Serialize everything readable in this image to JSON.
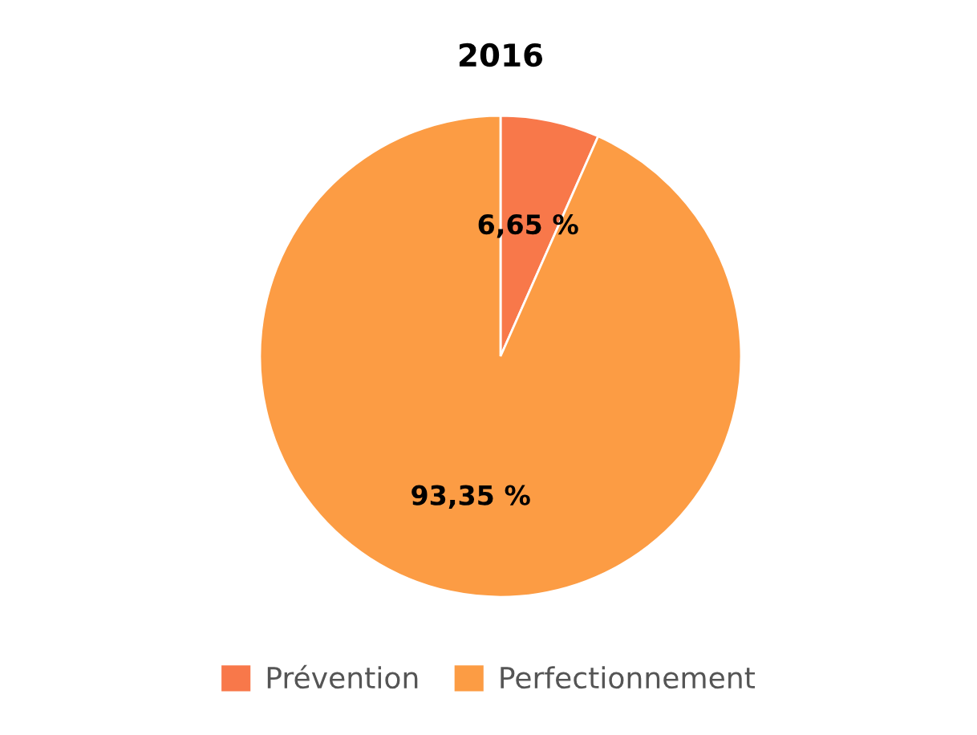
{
  "chart_data": {
    "type": "pie",
    "title": "2016",
    "categories": [
      "Prévention",
      "Perfectionnement"
    ],
    "values": [
      6.65,
      93.35
    ],
    "value_labels": [
      "6,65 %",
      "93,35 %"
    ],
    "colors": [
      "#f8784a",
      "#fc9c44"
    ],
    "legend": "bottom"
  }
}
